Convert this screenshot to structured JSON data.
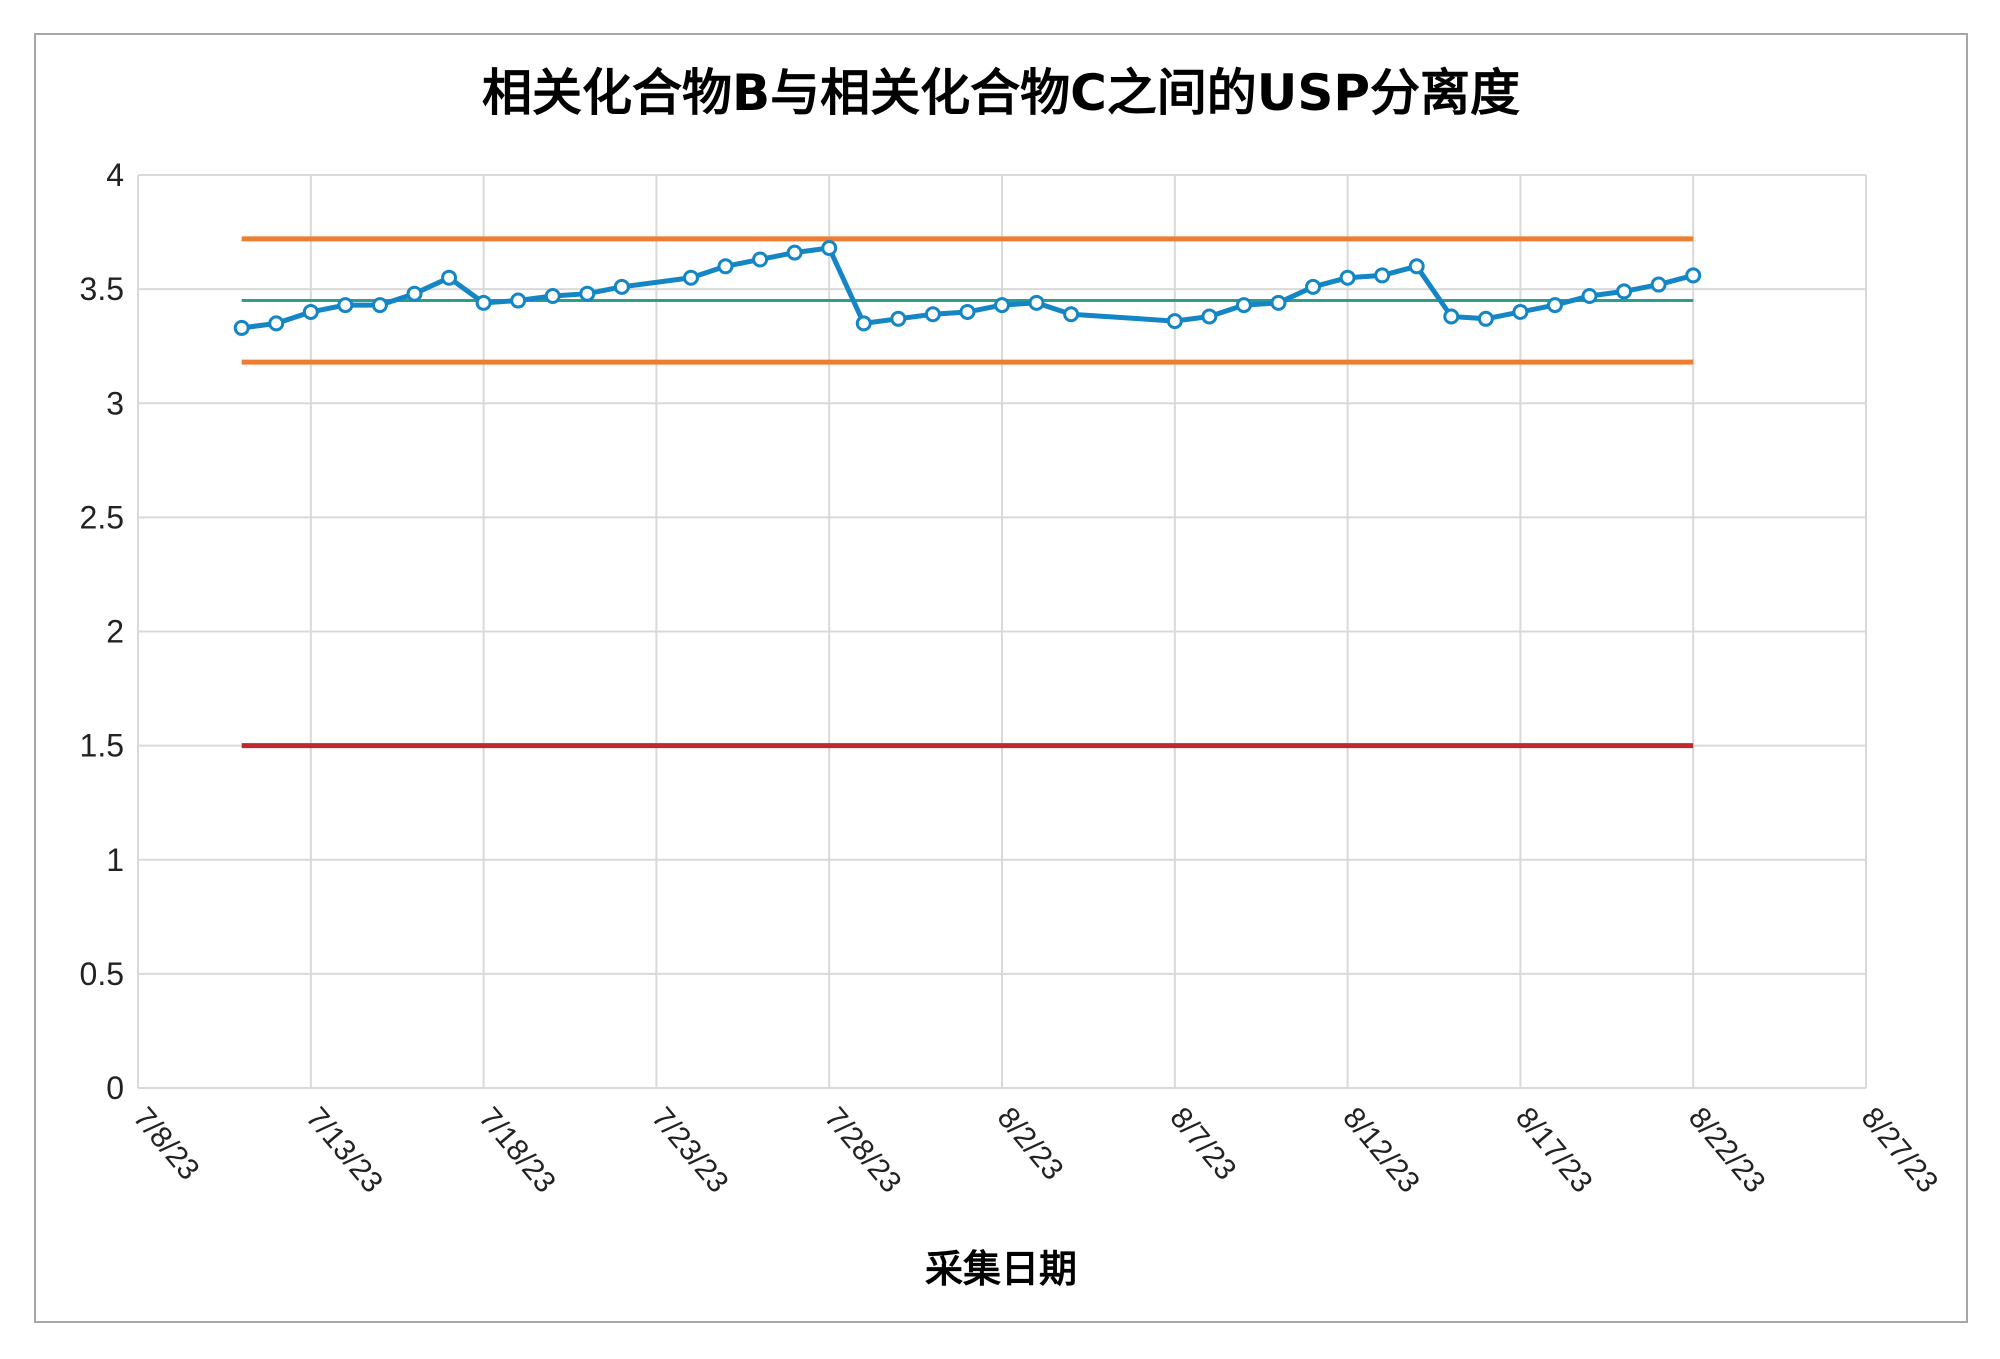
{
  "chart_data": {
    "type": "line",
    "title": "相关化合物B与相关化合物C之间的USP分离度",
    "xlabel": "采集日期",
    "ylabel": "",
    "ylim": [
      0,
      4
    ],
    "yticks": [
      "0",
      "0.5",
      "1",
      "1.5",
      "2",
      "2.5",
      "3",
      "3.5",
      "4"
    ],
    "xlim": [
      "2023-07-08",
      "2023-08-27"
    ],
    "xticks": [
      "7/8/23",
      "7/13/23",
      "7/18/23",
      "7/23/23",
      "7/28/23",
      "8/2/23",
      "8/7/23",
      "8/12/23",
      "8/17/23",
      "8/22/23",
      "8/27/23"
    ],
    "grid": true,
    "legend": "none",
    "series": [
      {
        "color": "#1486c5",
        "marker": "circle",
        "x": [
          "2023-07-11",
          "2023-07-12",
          "2023-07-13",
          "2023-07-14",
          "2023-07-15",
          "2023-07-16",
          "2023-07-17",
          "2023-07-18",
          "2023-07-19",
          "2023-07-20",
          "2023-07-21",
          "2023-07-22",
          "2023-07-24",
          "2023-07-25",
          "2023-07-26",
          "2023-07-27",
          "2023-07-28",
          "2023-07-29",
          "2023-07-30",
          "2023-07-31",
          "2023-08-01",
          "2023-08-02",
          "2023-08-03",
          "2023-08-04",
          "2023-08-07",
          "2023-08-08",
          "2023-08-09",
          "2023-08-10",
          "2023-08-11",
          "2023-08-12",
          "2023-08-13",
          "2023-08-14",
          "2023-08-15",
          "2023-08-16",
          "2023-08-17",
          "2023-08-18",
          "2023-08-19",
          "2023-08-20",
          "2023-08-21",
          "2023-08-22"
        ],
        "y": [
          3.33,
          3.35,
          3.4,
          3.43,
          3.43,
          3.48,
          3.55,
          3.44,
          3.45,
          3.47,
          3.48,
          3.51,
          3.55,
          3.6,
          3.63,
          3.66,
          3.68,
          3.35,
          3.37,
          3.39,
          3.4,
          3.43,
          3.44,
          3.39,
          3.36,
          3.38,
          3.43,
          3.44,
          3.51,
          3.55,
          3.56,
          3.6,
          3.38,
          3.37,
          3.4,
          3.43,
          3.47,
          3.49,
          3.52,
          3.56
        ]
      }
    ],
    "reference_lines": [
      {
        "y": 3.72,
        "color": "#ed7d31"
      },
      {
        "y": 3.45,
        "color": "#2e9e8a"
      },
      {
        "y": 3.18,
        "color": "#ed7d31"
      },
      {
        "y": 1.5,
        "color": "#c0282d"
      }
    ],
    "reference_x_range": [
      "2023-07-11",
      "2023-08-22"
    ]
  }
}
